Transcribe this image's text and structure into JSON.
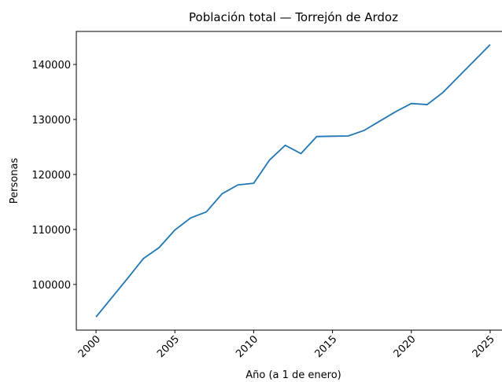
{
  "chart_data": {
    "type": "line",
    "title": "Población total — Torrejón de Ardoz",
    "x_label": "Año (a 1 de enero)",
    "y_label": "Personas",
    "x": [
      2000,
      2001,
      2002,
      2003,
      2004,
      2005,
      2006,
      2007,
      2008,
      2009,
      2010,
      2011,
      2012,
      2013,
      2014,
      2015,
      2016,
      2017,
      2018,
      2019,
      2020,
      2021,
      2022,
      2023,
      2024,
      2025
    ],
    "series": [
      {
        "name": "Población",
        "color": "#1f77b4",
        "values": [
          94100,
          97600,
          101100,
          104700,
          106700,
          109900,
          112100,
          113200,
          116500,
          118100,
          118400,
          122600,
          125300,
          123800,
          126900,
          126950,
          127000,
          128000,
          129700,
          131400,
          132900,
          132700,
          134900,
          137800,
          140700,
          143600
        ]
      }
    ],
    "xlim": [
      1998.75,
      2026.25
    ],
    "xticks": [
      2000,
      2005,
      2010,
      2015,
      2020,
      2025
    ],
    "ylim": [
      91700,
      146000
    ],
    "yticks": [
      100000,
      110000,
      120000,
      130000,
      140000
    ],
    "grid": false
  }
}
